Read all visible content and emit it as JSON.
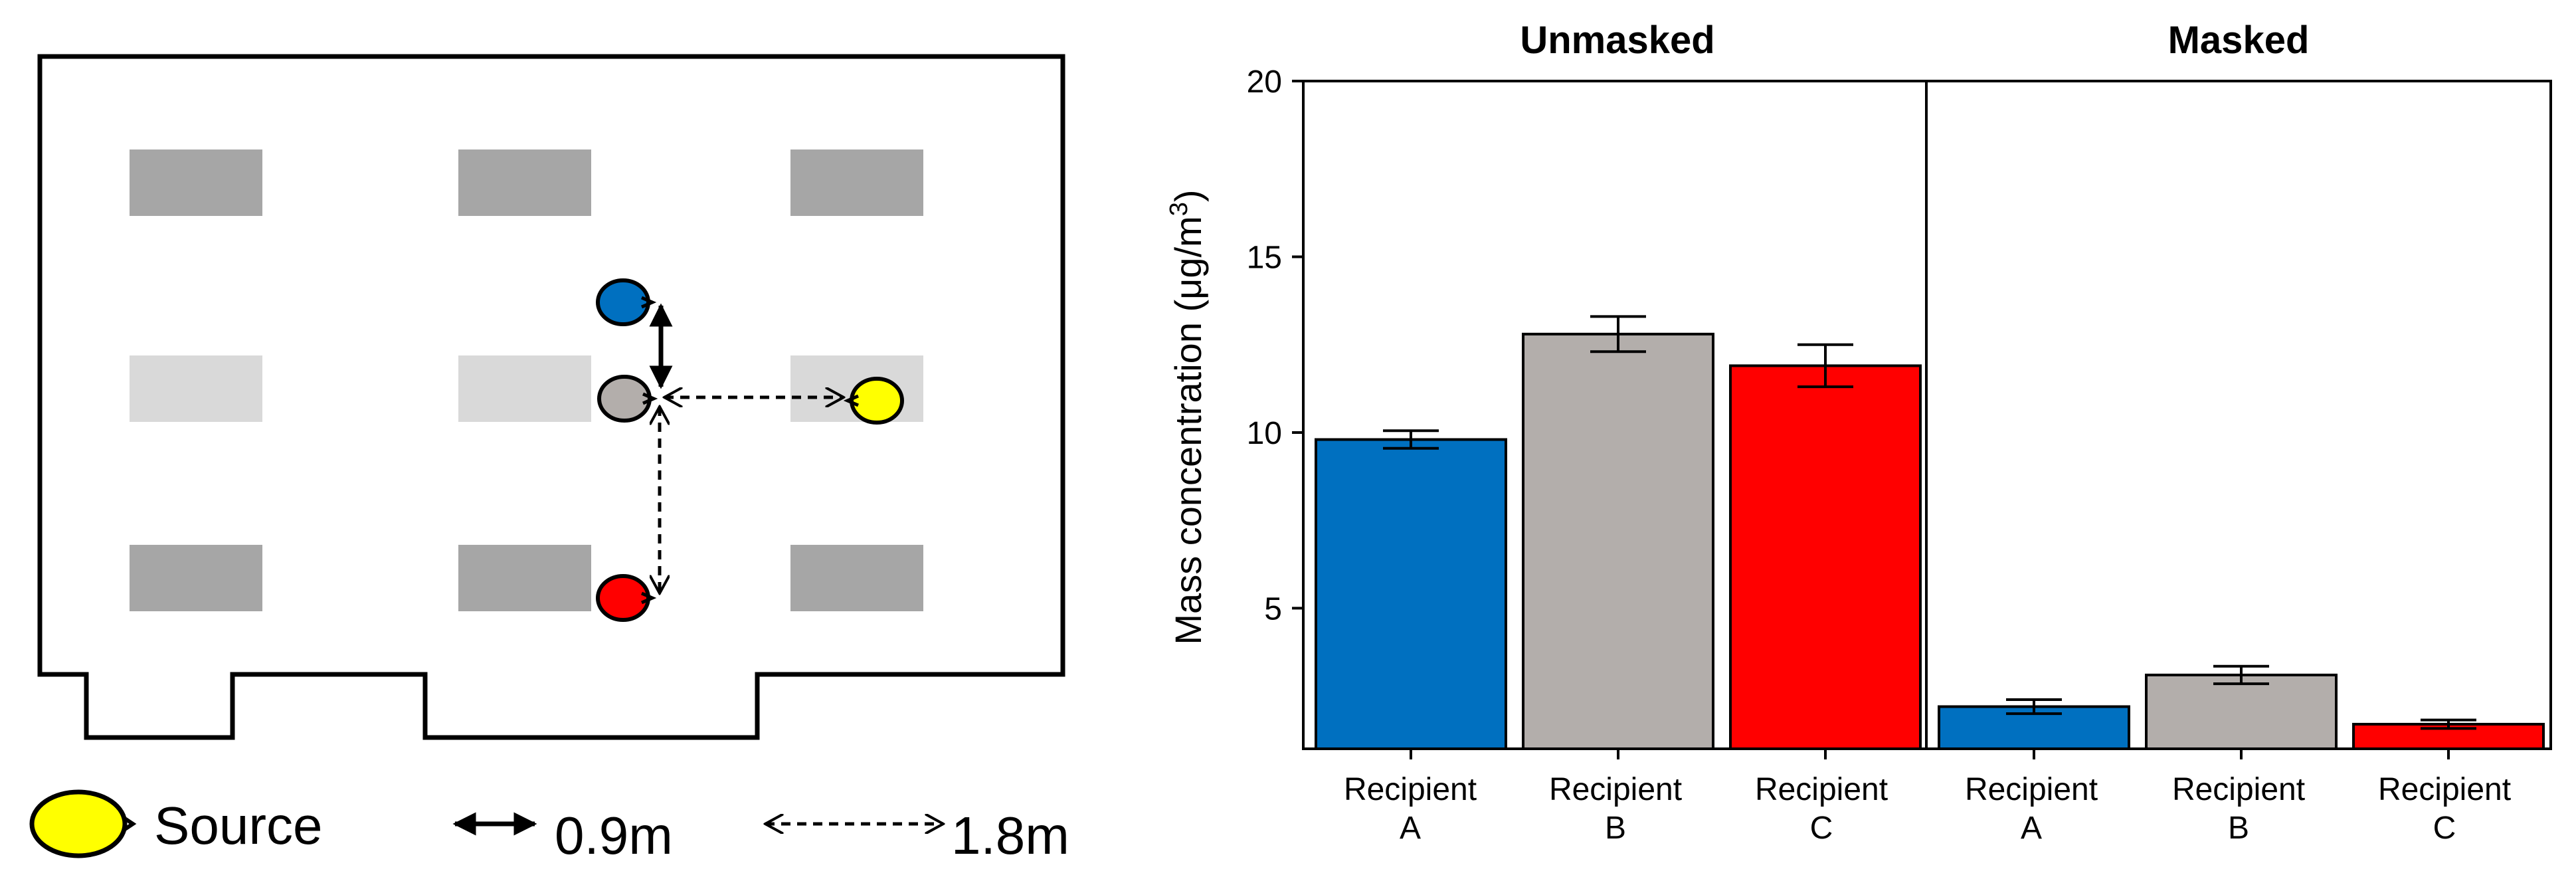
{
  "colors": {
    "recipient_a": "#0070C0",
    "recipient_b": "#B3AEAB",
    "recipient_c": "#FF0000",
    "source": "#FFFF00",
    "desk_dark": "#A6A6A6",
    "desk_light": "#D9D9D9"
  },
  "legend": {
    "source_label": "Source",
    "near_label": "0.9m",
    "far_label": "1.8m"
  },
  "chart_data": {
    "type": "bar",
    "ylabel": "Mass concentration (μg/m³)",
    "ylabel_main": "Mass concentration (",
    "ylabel_unit": "μg/m",
    "ylabel_sup": "3",
    "ylabel_close": ")",
    "ylim": [
      1,
      20
    ],
    "yticks": [
      5,
      10,
      15,
      20
    ],
    "grid": false,
    "panels": [
      {
        "title": "Unmasked",
        "categories": [
          {
            "line1": "Recipient",
            "line2": "A"
          },
          {
            "line1": "Recipient",
            "line2": "B"
          },
          {
            "line1": "Recipient",
            "line2": "C"
          }
        ],
        "values": [
          9.8,
          12.8,
          11.9
        ],
        "errors": [
          0.25,
          0.5,
          0.6
        ]
      },
      {
        "title": "Masked",
        "categories": [
          {
            "line1": "Recipient",
            "line2": "A"
          },
          {
            "line1": "Recipient",
            "line2": "B"
          },
          {
            "line1": "Recipient",
            "line2": "C"
          }
        ],
        "values": [
          2.2,
          3.1,
          1.7
        ],
        "errors": [
          0.2,
          0.25,
          0.12
        ]
      }
    ]
  }
}
